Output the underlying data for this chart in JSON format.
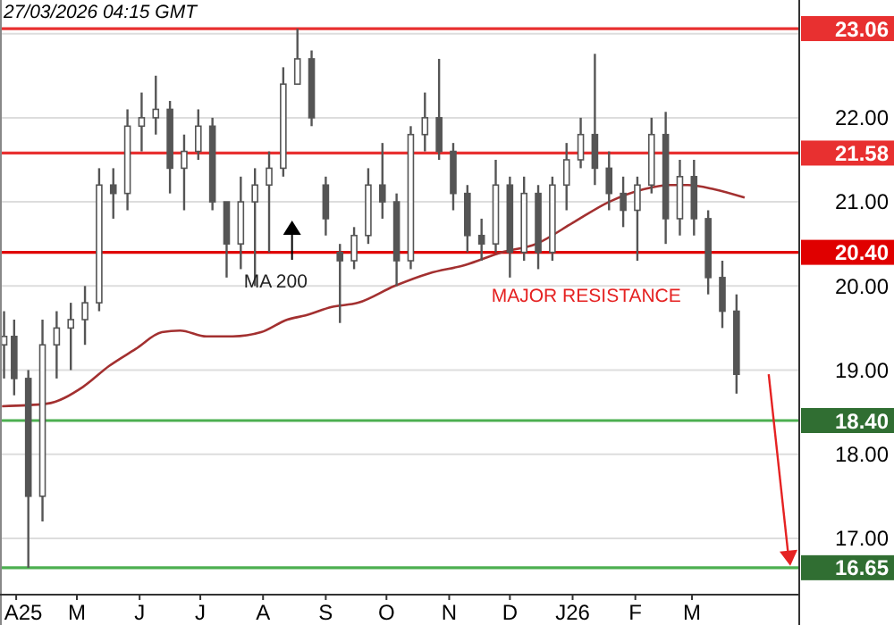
{
  "chart_data": {
    "type": "candlestick",
    "title": "27/03/2026 04:15 GMT",
    "xlim": [
      "2025-03-24",
      "2026-04-23"
    ],
    "xticks": [
      {
        "value": "2025-04-01",
        "label": "A25"
      },
      {
        "value": "2025-05-01",
        "label": "M"
      },
      {
        "value": "2025-06-01",
        "label": "J"
      },
      {
        "value": "2025-07-01",
        "label": "J"
      },
      {
        "value": "2025-08-01",
        "label": "A"
      },
      {
        "value": "2025-09-01",
        "label": "S"
      },
      {
        "value": "2025-10-01",
        "label": "O"
      },
      {
        "value": "2025-11-01",
        "label": "N"
      },
      {
        "value": "2025-12-01",
        "label": "D"
      },
      {
        "value": "2026-01-01",
        "label": "J26"
      },
      {
        "value": "2026-02-01",
        "label": "F"
      },
      {
        "value": "2026-03-01",
        "label": "M"
      }
    ],
    "ylim": [
      16.33,
      23.4
    ],
    "yticks": [
      {
        "value": 17,
        "label": "17.00"
      },
      {
        "value": 18,
        "label": "18.00"
      },
      {
        "value": 19,
        "label": "19.00"
      },
      {
        "value": 20,
        "label": "20.00"
      },
      {
        "value": 21,
        "label": "21.00"
      },
      {
        "value": 22,
        "label": "22.00"
      },
      {
        "value": 23,
        "label": null
      }
    ],
    "grid": "y",
    "legend": false,
    "series": [
      {
        "color": "#555555",
        "x": [
          "2025-03-26",
          "2025-03-31",
          "2025-04-07",
          "2025-04-14",
          "2025-04-21",
          "2025-04-28",
          "2025-05-05",
          "2025-05-12",
          "2025-05-19",
          "2025-05-26",
          "2025-06-02",
          "2025-06-09",
          "2025-06-16",
          "2025-06-23",
          "2025-06-30",
          "2025-07-07",
          "2025-07-14",
          "2025-07-21",
          "2025-07-28",
          "2025-08-04",
          "2025-08-11",
          "2025-08-18",
          "2025-08-25",
          "2025-09-01",
          "2025-09-08",
          "2025-09-15",
          "2025-09-22",
          "2025-09-29",
          "2025-10-06",
          "2025-10-13",
          "2025-10-20",
          "2025-10-27",
          "2025-11-03",
          "2025-11-10",
          "2025-11-17",
          "2025-11-24",
          "2025-12-01",
          "2025-12-08",
          "2025-12-15",
          "2025-12-22",
          "2025-12-29",
          "2026-01-05",
          "2026-01-12",
          "2026-01-19",
          "2026-01-26",
          "2026-02-02",
          "2026-02-09",
          "2026-02-16",
          "2026-02-23",
          "2026-03-02",
          "2026-03-09",
          "2026-03-16",
          "2026-03-23"
        ],
        "ohlc": [
          [
            19.3,
            19.7,
            18.9,
            19.4
          ],
          [
            19.4,
            19.6,
            18.7,
            18.9
          ],
          [
            18.9,
            19.0,
            16.65,
            17.5
          ],
          [
            17.5,
            19.6,
            17.2,
            19.3
          ],
          [
            19.3,
            19.7,
            18.9,
            19.5
          ],
          [
            19.5,
            19.8,
            19.0,
            19.6
          ],
          [
            19.6,
            20.0,
            19.3,
            19.8
          ],
          [
            19.8,
            21.4,
            19.7,
            21.2
          ],
          [
            21.2,
            21.4,
            20.8,
            21.1
          ],
          [
            21.1,
            22.1,
            20.9,
            21.9
          ],
          [
            21.9,
            22.3,
            21.6,
            22.0
          ],
          [
            22.0,
            22.5,
            21.8,
            22.1
          ],
          [
            22.1,
            22.2,
            21.1,
            21.4
          ],
          [
            21.4,
            21.8,
            20.9,
            21.6
          ],
          [
            21.6,
            22.1,
            21.5,
            21.9
          ],
          [
            21.9,
            22.0,
            20.9,
            21.0
          ],
          [
            21.0,
            21.0,
            20.1,
            20.5
          ],
          [
            20.5,
            21.3,
            20.2,
            21.0
          ],
          [
            21.0,
            21.4,
            20.0,
            21.2
          ],
          [
            21.2,
            21.6,
            20.4,
            21.4
          ],
          [
            21.4,
            22.6,
            21.3,
            22.4
          ],
          [
            22.4,
            23.06,
            22.4,
            22.7
          ],
          [
            22.7,
            22.8,
            21.9,
            22.0
          ],
          [
            21.2,
            21.3,
            20.6,
            20.8
          ],
          [
            20.4,
            20.5,
            19.56,
            20.3
          ],
          [
            20.3,
            20.7,
            20.2,
            20.6
          ],
          [
            20.6,
            21.4,
            20.5,
            21.2
          ],
          [
            21.2,
            21.7,
            20.8,
            21.0
          ],
          [
            21.0,
            21.1,
            20.0,
            20.3
          ],
          [
            20.3,
            21.9,
            20.2,
            21.8
          ],
          [
            21.8,
            22.3,
            21.6,
            22.0
          ],
          [
            22.0,
            22.7,
            21.5,
            21.6
          ],
          [
            21.6,
            21.7,
            20.9,
            21.1
          ],
          [
            21.1,
            21.2,
            20.4,
            20.6
          ],
          [
            20.6,
            20.8,
            20.3,
            20.5
          ],
          [
            20.5,
            21.5,
            20.4,
            21.2
          ],
          [
            21.2,
            21.3,
            20.1,
            20.4
          ],
          [
            20.4,
            21.3,
            20.3,
            21.1
          ],
          [
            21.1,
            21.2,
            20.2,
            20.4
          ],
          [
            20.4,
            21.3,
            20.3,
            21.2
          ],
          [
            21.2,
            21.7,
            20.9,
            21.5
          ],
          [
            21.5,
            22.0,
            21.4,
            21.8
          ],
          [
            21.8,
            22.76,
            21.2,
            21.4
          ],
          [
            21.4,
            21.6,
            20.9,
            21.1
          ],
          [
            21.1,
            21.3,
            20.7,
            20.9
          ],
          [
            20.9,
            21.3,
            20.3,
            21.2
          ],
          [
            21.2,
            22.0,
            21.1,
            21.8
          ],
          [
            21.8,
            22.07,
            20.5,
            20.8
          ],
          [
            20.8,
            21.5,
            20.6,
            21.3
          ],
          [
            21.3,
            21.5,
            20.6,
            20.8
          ],
          [
            20.8,
            20.9,
            19.9,
            20.1
          ],
          [
            20.1,
            20.3,
            19.5,
            19.7
          ],
          [
            19.7,
            19.9,
            18.72,
            18.95
          ]
        ]
      },
      {
        "type": "line",
        "name": "MA 200",
        "color": "#a33030",
        "x": [
          "2025-03-25",
          "2025-04-16",
          "2025-05-04",
          "2025-05-17",
          "2025-05-30",
          "2025-06-12",
          "2025-06-21",
          "2025-07-04",
          "2025-07-17",
          "2025-07-31",
          "2025-08-13",
          "2025-08-22",
          "2025-09-04",
          "2025-09-17",
          "2025-10-05",
          "2025-10-22",
          "2025-11-09",
          "2025-11-27",
          "2025-12-14",
          "2026-01-01",
          "2026-01-19",
          "2026-02-05",
          "2026-02-18",
          "2026-02-27",
          "2026-03-12",
          "2026-03-27"
        ],
        "values": [
          18.57,
          18.6,
          18.8,
          19.05,
          19.25,
          19.45,
          19.47,
          19.4,
          19.4,
          19.45,
          19.6,
          19.65,
          19.75,
          19.8,
          20.0,
          20.15,
          20.25,
          20.4,
          20.5,
          20.75,
          21.0,
          21.15,
          21.2,
          21.2,
          21.15,
          21.05
        ]
      }
    ],
    "ref_lines": [
      {
        "axis": "y",
        "value": 23.06,
        "label": "23.06",
        "color": "#e83030"
      },
      {
        "axis": "y",
        "value": 21.58,
        "label": "21.58",
        "color": "#e83030"
      },
      {
        "axis": "y",
        "value": 20.4,
        "label": "20.40",
        "color": "#e00000"
      },
      {
        "axis": "y",
        "value": 18.4,
        "label": "18.40",
        "color": "#4caf50"
      },
      {
        "axis": "y",
        "value": 16.65,
        "label": "16.65",
        "color": "#4caf50"
      }
    ],
    "annotations": [
      "MAJOR RESISTANCE"
    ]
  }
}
